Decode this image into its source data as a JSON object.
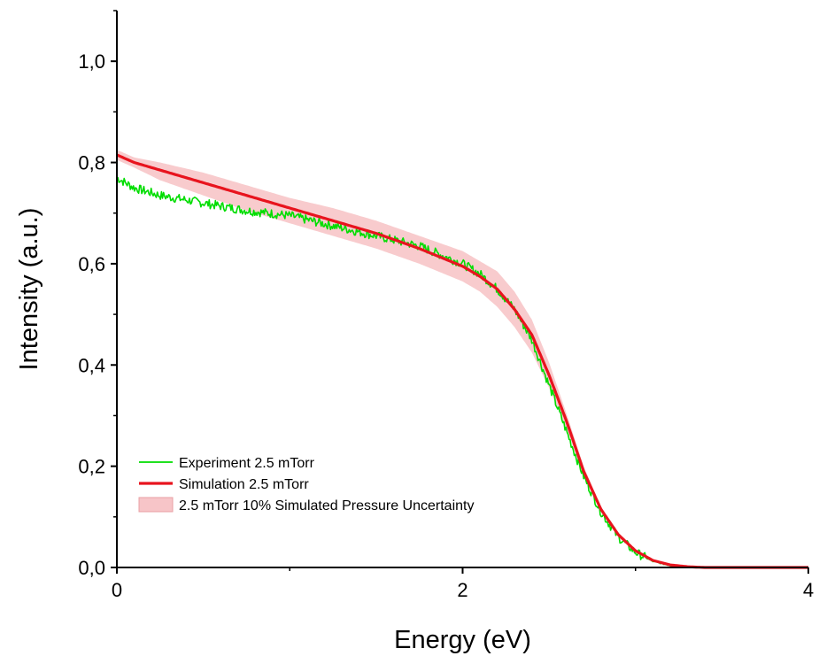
{
  "chart_data": {
    "type": "line",
    "xlabel": "Energy (eV)",
    "ylabel": "Intensity (a.u.)",
    "xlim": [
      0,
      4
    ],
    "ylim": [
      0,
      1.1
    ],
    "x_ticks": [
      0,
      2,
      4
    ],
    "x_tick_labels": [
      "0",
      "2",
      "4"
    ],
    "y_ticks": [
      0.0,
      0.2,
      0.4,
      0.6,
      0.8,
      1.0
    ],
    "y_tick_labels": [
      "0,0",
      "0,2",
      "0,4",
      "0,6",
      "0,8",
      "1,0"
    ],
    "grid": false,
    "legend_position": "bottom-left",
    "series": [
      {
        "name": "Experiment 2.5 mTorr",
        "kind": "line",
        "color": "#00dd00",
        "noisy": true,
        "x": [
          0,
          0.1,
          0.25,
          0.5,
          0.75,
          1.0,
          1.25,
          1.5,
          1.75,
          2.0,
          2.1,
          2.2,
          2.3,
          2.4,
          2.5,
          2.6,
          2.7,
          2.8,
          2.9,
          3.0,
          3.1,
          3.2,
          3.3,
          3.4,
          3.6,
          4.0
        ],
        "y": [
          0.77,
          0.75,
          0.735,
          0.72,
          0.705,
          0.695,
          0.675,
          0.655,
          0.635,
          0.6,
          0.58,
          0.55,
          0.51,
          0.45,
          0.36,
          0.27,
          0.18,
          0.11,
          0.06,
          0.03,
          0.012,
          0.004,
          0.001,
          0.0,
          0.0,
          0.0
        ]
      },
      {
        "name": "Simulation 2.5 mTorr",
        "kind": "line",
        "color": "#e8141e",
        "x": [
          0,
          0.1,
          0.25,
          0.5,
          0.75,
          1.0,
          1.25,
          1.5,
          1.75,
          2.0,
          2.1,
          2.2,
          2.3,
          2.4,
          2.5,
          2.6,
          2.7,
          2.8,
          2.9,
          3.0,
          3.1,
          3.2,
          3.3,
          3.4,
          3.6,
          4.0
        ],
        "y": [
          0.815,
          0.8,
          0.785,
          0.76,
          0.735,
          0.71,
          0.685,
          0.66,
          0.63,
          0.595,
          0.575,
          0.55,
          0.51,
          0.46,
          0.38,
          0.29,
          0.19,
          0.115,
          0.065,
          0.033,
          0.014,
          0.005,
          0.0015,
          0.0,
          0.0,
          0.0
        ]
      },
      {
        "name": "2.5 mTorr 10% Simulated Pressure Uncertainty",
        "kind": "band",
        "color": "#f7c5c8",
        "x": [
          0,
          0.1,
          0.25,
          0.5,
          0.75,
          1.0,
          1.25,
          1.5,
          1.75,
          2.0,
          2.1,
          2.2,
          2.3,
          2.4,
          2.5,
          2.6,
          2.7,
          2.8,
          2.9,
          3.0,
          3.1,
          3.2,
          3.3,
          3.4,
          3.6,
          4.0
        ],
        "y_low": [
          0.805,
          0.79,
          0.765,
          0.735,
          0.705,
          0.68,
          0.655,
          0.63,
          0.6,
          0.565,
          0.545,
          0.515,
          0.475,
          0.425,
          0.355,
          0.275,
          0.18,
          0.11,
          0.062,
          0.031,
          0.013,
          0.0045,
          0.0013,
          0.0,
          0.0,
          0.0
        ],
        "y_high": [
          0.825,
          0.81,
          0.8,
          0.78,
          0.755,
          0.73,
          0.71,
          0.685,
          0.655,
          0.625,
          0.605,
          0.585,
          0.545,
          0.49,
          0.405,
          0.305,
          0.2,
          0.12,
          0.068,
          0.035,
          0.015,
          0.0055,
          0.0017,
          0.0,
          0.0,
          0.0
        ]
      }
    ]
  }
}
